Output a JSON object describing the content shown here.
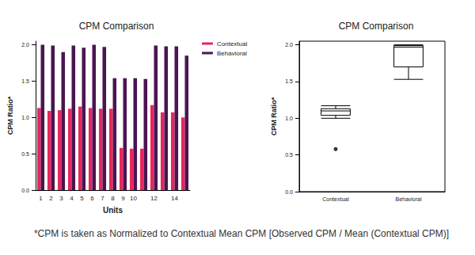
{
  "chart_data": [
    {
      "type": "bar",
      "title": "CPM Comparison",
      "x_label": "Units",
      "y_label": "CPM Ratio*",
      "categories": [
        "1",
        "2",
        "3",
        "4",
        "5",
        "6",
        "7",
        "8",
        "9",
        "10",
        null,
        "12",
        null,
        "14",
        null
      ],
      "series": [
        {
          "name": "Contextual",
          "color": "#e8265e",
          "values": [
            1.13,
            1.09,
            1.1,
            1.12,
            1.15,
            1.13,
            1.12,
            1.12,
            0.58,
            0.57,
            0.57,
            1.17,
            1.07,
            1.07,
            1.0
          ]
        },
        {
          "name": "Behavioral",
          "color": "#4a1552",
          "values": [
            2.0,
            1.99,
            1.9,
            1.99,
            1.96,
            2.0,
            1.97,
            1.54,
            1.54,
            1.54,
            1.53,
            1.99,
            1.98,
            1.98,
            1.85
          ]
        }
      ],
      "ylim": [
        0,
        2.05
      ],
      "yticks": [
        {
          "value": 0,
          "label": "0.0"
        },
        {
          "value": 0.5,
          "label": "0.5"
        },
        {
          "value": 1,
          "label": "1.0"
        },
        {
          "value": 1.5,
          "label": "1.5"
        },
        {
          "value": 2,
          "label": "2.0"
        }
      ],
      "grid": false,
      "legend": "right"
    },
    {
      "type": "boxplot",
      "title": "CPM Comparison",
      "y_label": "CPM Ratio*",
      "categories": [
        "Contextual",
        "Behavioral"
      ],
      "boxes": [
        {
          "low": 1.0,
          "q1": 1.04,
          "median": 1.1,
          "q3": 1.13,
          "high": 1.17,
          "outliers": [
            0.58
          ]
        },
        {
          "low": 1.53,
          "q1": 1.7,
          "median": 1.97,
          "q3": 1.99,
          "high": 2.0,
          "outliers": []
        }
      ],
      "color": "#000000",
      "ylim": [
        0,
        2.05
      ],
      "yticks": [
        {
          "value": 0,
          "label": "0.0"
        },
        {
          "value": 0.5,
          "label": "0.5"
        },
        {
          "value": 1,
          "label": "1.0"
        },
        {
          "value": 1.5,
          "label": "1.5"
        },
        {
          "value": 2,
          "label": "2.0"
        }
      ],
      "grid": false
    }
  ],
  "footnote": "*CPM is taken as Normalized to Contextual Mean CPM [Observed CPM / Mean (Contextual CPM)]"
}
